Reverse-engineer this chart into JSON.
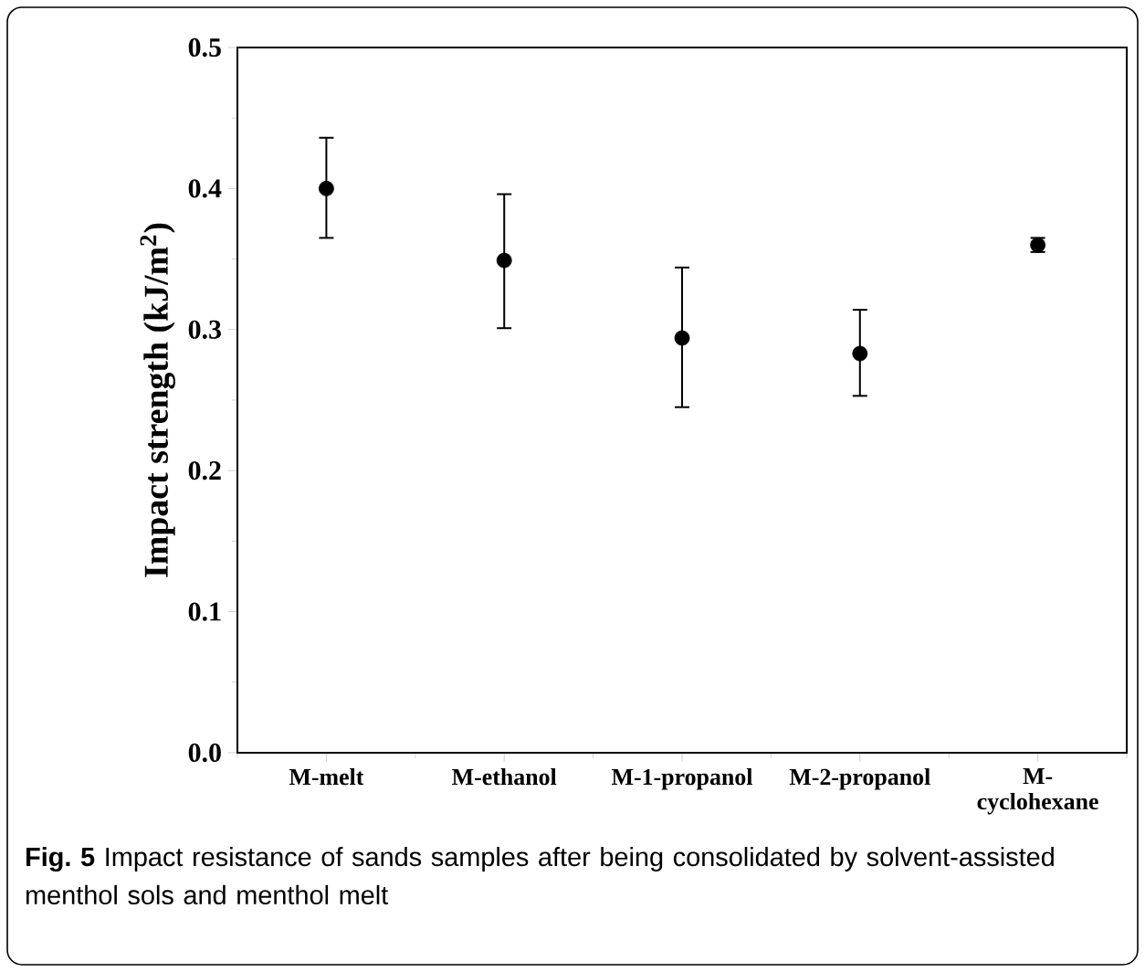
{
  "chart_data": {
    "type": "scatter",
    "ylabel": "Impact strength (kJ/m$^{2}$)",
    "categories": [
      "M-melt",
      "M-ethanol",
      "M-1-propanol",
      "M-2-propanol",
      "M-cyclohexane"
    ],
    "values": [
      0.4,
      0.349,
      0.294,
      0.283,
      0.36
    ],
    "errors": [
      [
        0.365,
        0.436
      ],
      [
        0.301,
        0.396
      ],
      [
        0.245,
        0.344
      ],
      [
        0.253,
        0.314
      ],
      [
        0.355,
        0.365
      ]
    ],
    "color": "#000000",
    "marker": "circle",
    "ylim": [
      0,
      0.5
    ],
    "yticks": [
      {
        "value": 0,
        "label": "0.0"
      },
      0.1,
      0.2,
      0.3,
      0.4,
      0.5
    ],
    "grid": false,
    "annotations": [
      "**Fig. 5** Impact resistance of sands samples after being consolidated by solvent-assisted menthol sols and menthol melt"
    ]
  }
}
